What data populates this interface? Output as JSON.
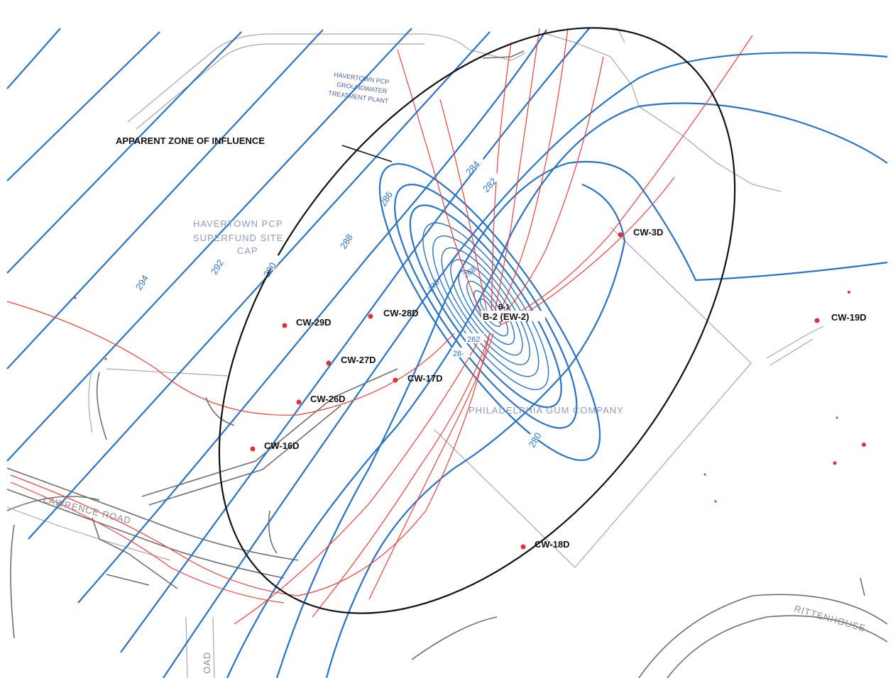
{
  "annotation": {
    "zone_label": "APPARENT ZONE OF INFLUENCE"
  },
  "site_labels": {
    "superfund_line1": "HAVERTOWN PCP",
    "superfund_line2": "SUPERFUND SITE",
    "superfund_line3": "CAP",
    "plant_line1": "HAVERTOWN PCP",
    "plant_line2": "GROUNDWATER",
    "plant_line3": "TREATMENT PLANT",
    "company": "PHILADELPHIA GUM COMPANY",
    "road_left": "LAWRENCE ROAD",
    "road_right": "RITTENHOUSE",
    "road_bottom": "OAD"
  },
  "wells": [
    {
      "id": "CW-3D",
      "label": "CW-3D"
    },
    {
      "id": "CW-29D-west",
      "label": "CW-29D"
    },
    {
      "id": "CW-28D",
      "label": "CW-28D"
    },
    {
      "id": "CW-27D",
      "label": "CW-27D"
    },
    {
      "id": "CW-17D",
      "label": "CW-17D"
    },
    {
      "id": "CW-26D",
      "label": "CW-26D"
    },
    {
      "id": "CW-16D",
      "label": "CW-16D"
    },
    {
      "id": "CW-18D",
      "label": "CW-18D"
    },
    {
      "id": "CW-19D",
      "label": "CW-19D"
    },
    {
      "id": "B-1",
      "label": "B-1"
    },
    {
      "id": "B-2",
      "label": "B-2 (EW-2)"
    }
  ],
  "contour_labels": [
    "294",
    "292",
    "290",
    "288",
    "286",
    "284",
    "282",
    "280",
    "270",
    "268",
    "262",
    "26-"
  ],
  "colors": {
    "contour": "#2a73c2",
    "flow_line": "#e8423e",
    "well": "#e0303a",
    "zone": "#111111",
    "road": "#6f6f6f"
  }
}
